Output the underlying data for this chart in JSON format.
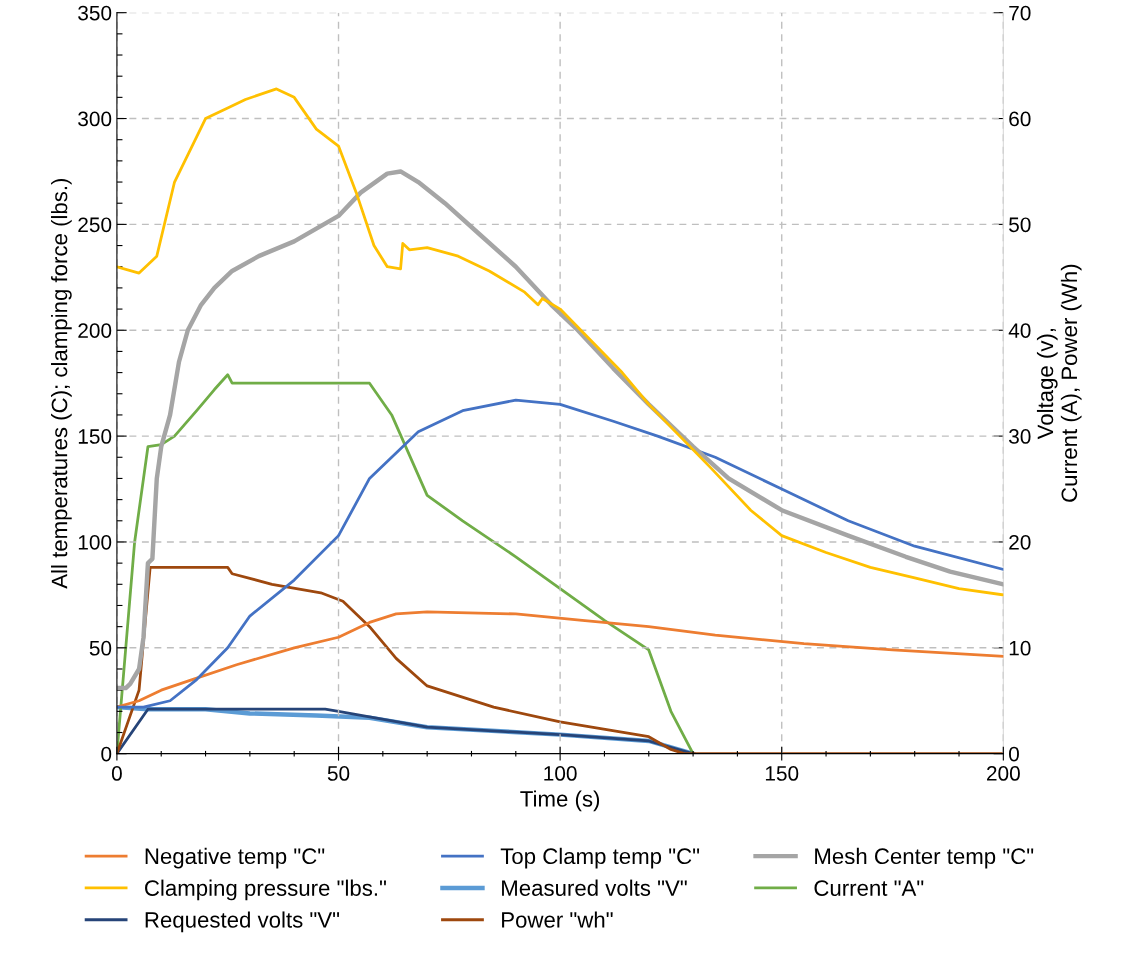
{
  "chart_data": {
    "type": "line",
    "xlabel": "Time (s)",
    "ylabel": "All temperatures (C); clamping force (lbs.)",
    "y2label": "Voltage (v),\nCurrent (A), Power (Wh)",
    "xlim": [
      0,
      200
    ],
    "xticks": [
      0,
      {
        "value": 10,
        "label": null
      },
      {
        "value": 20,
        "label": null
      },
      {
        "value": 30,
        "label": null
      },
      {
        "value": 40,
        "label": null
      },
      50,
      {
        "value": 60,
        "label": null
      },
      {
        "value": 70,
        "label": null
      },
      {
        "value": 80,
        "label": null
      },
      {
        "value": 90,
        "label": null
      },
      100,
      {
        "value": 110,
        "label": null
      },
      {
        "value": 120,
        "label": null
      },
      {
        "value": 130,
        "label": null
      },
      {
        "value": 140,
        "label": null
      },
      150,
      {
        "value": 160,
        "label": null
      },
      {
        "value": 170,
        "label": null
      },
      {
        "value": 180,
        "label": null
      },
      {
        "value": 190,
        "label": null
      },
      200
    ],
    "ylim": [
      0,
      350
    ],
    "yticks": [
      0,
      {
        "value": 10,
        "label": null
      },
      {
        "value": 20,
        "label": null
      },
      {
        "value": 30,
        "label": null
      },
      {
        "value": 40,
        "label": null
      },
      50,
      {
        "value": 60,
        "label": null
      },
      {
        "value": 70,
        "label": null
      },
      {
        "value": 80,
        "label": null
      },
      {
        "value": 90,
        "label": null
      },
      100,
      {
        "value": 110,
        "label": null
      },
      {
        "value": 120,
        "label": null
      },
      {
        "value": 130,
        "label": null
      },
      {
        "value": 140,
        "label": null
      },
      150,
      {
        "value": 160,
        "label": null
      },
      {
        "value": 170,
        "label": null
      },
      {
        "value": 180,
        "label": null
      },
      {
        "value": 190,
        "label": null
      },
      200,
      {
        "value": 210,
        "label": null
      },
      {
        "value": 220,
        "label": null
      },
      {
        "value": 230,
        "label": null
      },
      {
        "value": 240,
        "label": null
      },
      250,
      {
        "value": 260,
        "label": null
      },
      {
        "value": 270,
        "label": null
      },
      {
        "value": 280,
        "label": null
      },
      {
        "value": 290,
        "label": null
      },
      300,
      {
        "value": 310,
        "label": null
      },
      {
        "value": 320,
        "label": null
      },
      {
        "value": 330,
        "label": null
      },
      {
        "value": 340,
        "label": null
      },
      350
    ],
    "y2lim": [
      0,
      70
    ],
    "y2ticks": [
      0,
      10,
      20,
      30,
      40,
      50,
      60,
      70
    ],
    "grid": true,
    "legend": "bottom",
    "marker": "none",
    "line_style": "solid",
    "series": [
      {
        "name": "Negative temp \"C\"",
        "color": "#ed7d31",
        "x": [
          0,
          5,
          10,
          17,
          27,
          40,
          50,
          57,
          63,
          70,
          90,
          105,
          120,
          135,
          155,
          175,
          200
        ],
        "values": [
          22,
          25,
          30,
          35,
          42,
          50,
          55,
          62,
          66,
          67,
          66,
          63,
          60,
          56,
          52,
          49,
          46
        ]
      },
      {
        "name": "Top Clamp temp \"C\"",
        "color": "#4472c4",
        "x": [
          0,
          6,
          12,
          18,
          25,
          30,
          40,
          50,
          57,
          68,
          78,
          90,
          100,
          112,
          122,
          135,
          150,
          165,
          180,
          200
        ],
        "values": [
          22,
          22,
          25,
          35,
          50,
          65,
          82,
          103,
          130,
          152,
          162,
          167,
          165,
          157,
          150,
          140,
          125,
          110,
          98,
          87
        ]
      },
      {
        "name": "Mesh Center temp \"C\"",
        "color": "#a5a5a5",
        "x": [
          0,
          2,
          3,
          5,
          6,
          7,
          8,
          9,
          10,
          12,
          14,
          16,
          19,
          22,
          26,
          32,
          40,
          45,
          50,
          55,
          61,
          64,
          68,
          74,
          82,
          90,
          98,
          104,
          112,
          120,
          130,
          138,
          150,
          165,
          178,
          188,
          200
        ],
        "values": [
          31,
          31,
          33,
          40,
          55,
          90,
          92,
          130,
          145,
          160,
          185,
          200,
          212,
          220,
          228,
          235,
          242,
          248,
          254,
          265,
          274,
          275,
          270,
          260,
          245,
          230,
          212,
          200,
          182,
          165,
          145,
          130,
          115,
          103,
          93,
          86,
          80
        ]
      },
      {
        "name": "Clamping pressure \"lbs.\"",
        "color": "#ffc000",
        "x": [
          0,
          5,
          9,
          13,
          20,
          25,
          29,
          36,
          40,
          45,
          50,
          54,
          58,
          61,
          64,
          64.5,
          66,
          70,
          77,
          84,
          92,
          95,
          96,
          100,
          107,
          114,
          120,
          127,
          134,
          143,
          150,
          160,
          170,
          180,
          190,
          200
        ],
        "values": [
          230,
          227,
          235,
          270,
          300,
          305,
          309,
          314,
          310,
          295,
          287,
          265,
          240,
          230,
          229,
          241,
          238,
          239,
          235,
          228,
          218,
          212,
          215,
          210,
          195,
          180,
          165,
          150,
          135,
          115,
          103,
          95,
          88,
          83,
          78,
          75
        ]
      },
      {
        "name": "Measured volts \"V\"",
        "color": "#5b9bd5",
        "axis": "y2",
        "x": [
          0,
          7,
          20,
          30,
          45,
          57,
          70,
          100,
          120,
          130
        ],
        "values": [
          4.4,
          4.2,
          4.2,
          3.8,
          3.6,
          3.4,
          2.5,
          1.8,
          1.2,
          0
        ]
      },
      {
        "name": "Current \"A\"",
        "color": "#70ad47",
        "axis": "y2",
        "x": [
          0,
          4,
          7,
          10,
          13,
          18,
          22,
          25,
          26,
          57,
          62,
          70,
          78,
          90,
          100,
          110,
          120,
          125,
          130
        ],
        "values": [
          0,
          20,
          29,
          29.2,
          30,
          32.4,
          34.4,
          35.8,
          35,
          35,
          32,
          24.4,
          22,
          18.6,
          15.6,
          12.6,
          9.8,
          4,
          0
        ]
      },
      {
        "name": "Requested volts \"V\"",
        "color": "#264478",
        "axis": "y2",
        "x": [
          0,
          7,
          47,
          50,
          70,
          100,
          120,
          130
        ],
        "values": [
          0,
          4.2,
          4.2,
          4,
          2.5,
          1.8,
          1.2,
          0
        ]
      },
      {
        "name": "Power \"wh\"",
        "color": "#9e480e",
        "axis": "y2",
        "x": [
          0,
          5,
          7.5,
          25,
          26,
          35,
          46,
          51,
          57,
          63,
          70,
          85,
          100,
          120,
          125,
          128,
          200
        ],
        "values": [
          0,
          6,
          17.6,
          17.6,
          17,
          16,
          15.2,
          14.4,
          12,
          9,
          6.4,
          4.4,
          3,
          1.6,
          0.4,
          0,
          0
        ]
      }
    ]
  }
}
